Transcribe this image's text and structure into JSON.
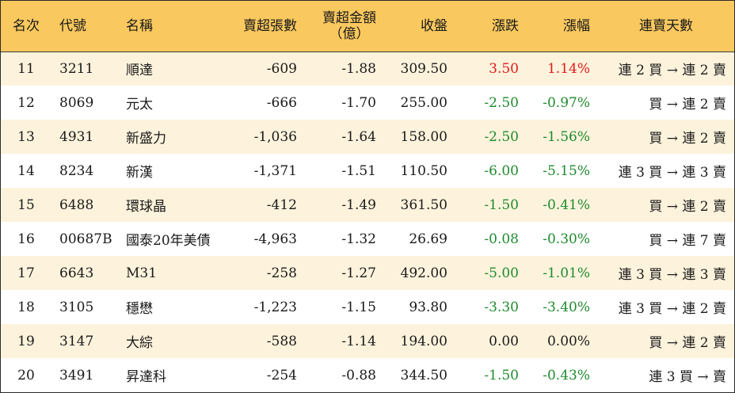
{
  "headers": {
    "rank": "名次",
    "code": "代號",
    "name": "名稱",
    "net_sell_lots": "賣超張數",
    "net_sell_amount_line1": "賣超金額",
    "net_sell_amount_line2": "（億）",
    "close": "收盤",
    "change": "漲跌",
    "change_pct": "漲幅",
    "streak": "連賣天數"
  },
  "colors": {
    "header_bg": "#f9c85e",
    "stripe_bg": "#fdf3dc",
    "up": "#e01b1b",
    "down": "#1f8a2e"
  },
  "rows": [
    {
      "rank": "11",
      "code": "3211",
      "name": "順達",
      "lots": "-609",
      "amount": "-1.88",
      "close": "309.50",
      "change": "3.50",
      "pct": "1.14%",
      "dir": "up",
      "streak": "連 2 買 → 連 2 賣"
    },
    {
      "rank": "12",
      "code": "8069",
      "name": "元太",
      "lots": "-666",
      "amount": "-1.70",
      "close": "255.00",
      "change": "-2.50",
      "pct": "-0.97%",
      "dir": "down",
      "streak": "買 → 連 2 賣"
    },
    {
      "rank": "13",
      "code": "4931",
      "name": "新盛力",
      "lots": "-1,036",
      "amount": "-1.64",
      "close": "158.00",
      "change": "-2.50",
      "pct": "-1.56%",
      "dir": "down",
      "streak": "買 → 連 2 賣"
    },
    {
      "rank": "14",
      "code": "8234",
      "name": "新漢",
      "lots": "-1,371",
      "amount": "-1.51",
      "close": "110.50",
      "change": "-6.00",
      "pct": "-5.15%",
      "dir": "down",
      "streak": "連 3 買 → 連 3 賣"
    },
    {
      "rank": "15",
      "code": "6488",
      "name": "環球晶",
      "lots": "-412",
      "amount": "-1.49",
      "close": "361.50",
      "change": "-1.50",
      "pct": "-0.41%",
      "dir": "down",
      "streak": "買 → 連 2 賣"
    },
    {
      "rank": "16",
      "code": "00687B",
      "name": "國泰20年美債",
      "lots": "-4,963",
      "amount": "-1.32",
      "close": "26.69",
      "change": "-0.08",
      "pct": "-0.30%",
      "dir": "down",
      "streak": "買 → 連 7 賣"
    },
    {
      "rank": "17",
      "code": "6643",
      "name": "M31",
      "lots": "-258",
      "amount": "-1.27",
      "close": "492.00",
      "change": "-5.00",
      "pct": "-1.01%",
      "dir": "down",
      "streak": "連 3 買 → 連 3 賣"
    },
    {
      "rank": "18",
      "code": "3105",
      "name": "穩懋",
      "lots": "-1,223",
      "amount": "-1.15",
      "close": "93.80",
      "change": "-3.30",
      "pct": "-3.40%",
      "dir": "down",
      "streak": "連 3 買 → 連 2 賣"
    },
    {
      "rank": "19",
      "code": "3147",
      "name": "大綜",
      "lots": "-588",
      "amount": "-1.14",
      "close": "194.00",
      "change": "0.00",
      "pct": "0.00%",
      "dir": "flat",
      "streak": "買 → 連 2 賣"
    },
    {
      "rank": "20",
      "code": "3491",
      "name": "昇達科",
      "lots": "-254",
      "amount": "-0.88",
      "close": "344.50",
      "change": "-1.50",
      "pct": "-0.43%",
      "dir": "down",
      "streak": "連 3 買 → 賣"
    }
  ]
}
